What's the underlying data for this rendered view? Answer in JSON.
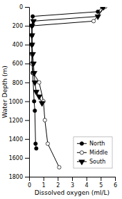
{
  "chart_data": {
    "type": "line",
    "xlabel": "Dissolved oxygen (ml/L)",
    "ylabel": "Water Depth (m)",
    "series": [
      {
        "name": "North",
        "color": "#000000",
        "marker": "circle",
        "line_style": "solid",
        "x": [
          5.1,
          4.8,
          0.25,
          0.2,
          0.2,
          0.2,
          0.2,
          0.2,
          0.25,
          0.35,
          0.4,
          0.45,
          0.5
        ],
        "values": [
          0,
          50,
          100,
          200,
          300,
          400,
          500,
          600,
          700,
          1000,
          1100,
          1450,
          1500
        ]
      },
      {
        "name": "Middle",
        "color": "#000000",
        "marker": "open-circle",
        "line_style": "solid",
        "x": [
          5.3,
          4.5,
          0.2,
          0.2,
          0.2,
          0.2,
          0.2,
          0.3,
          0.7,
          1.0,
          1.1,
          1.3,
          2.1
        ],
        "values": [
          0,
          150,
          200,
          300,
          400,
          500,
          600,
          700,
          800,
          1000,
          1200,
          1450,
          1700
        ]
      },
      {
        "name": "South",
        "color": "#000000",
        "marker": "triangle-down",
        "line_style": "solid",
        "x": [
          5.2,
          4.8,
          0.3,
          0.2,
          0.2,
          0.2,
          0.25,
          0.3,
          0.35,
          0.4,
          0.5,
          0.7,
          0.9
        ],
        "values": [
          0,
          100,
          150,
          200,
          300,
          400,
          500,
          600,
          700,
          800,
          900,
          950,
          1020
        ]
      }
    ],
    "xlim": [
      0,
      6
    ],
    "ylim": [
      1800,
      0
    ],
    "xticks": [
      0,
      1,
      2,
      3,
      4,
      5,
      6
    ],
    "yticks": [
      0,
      200,
      400,
      600,
      800,
      1000,
      1200,
      1400,
      1600,
      1800
    ],
    "grid": false,
    "legend": "lower right"
  }
}
